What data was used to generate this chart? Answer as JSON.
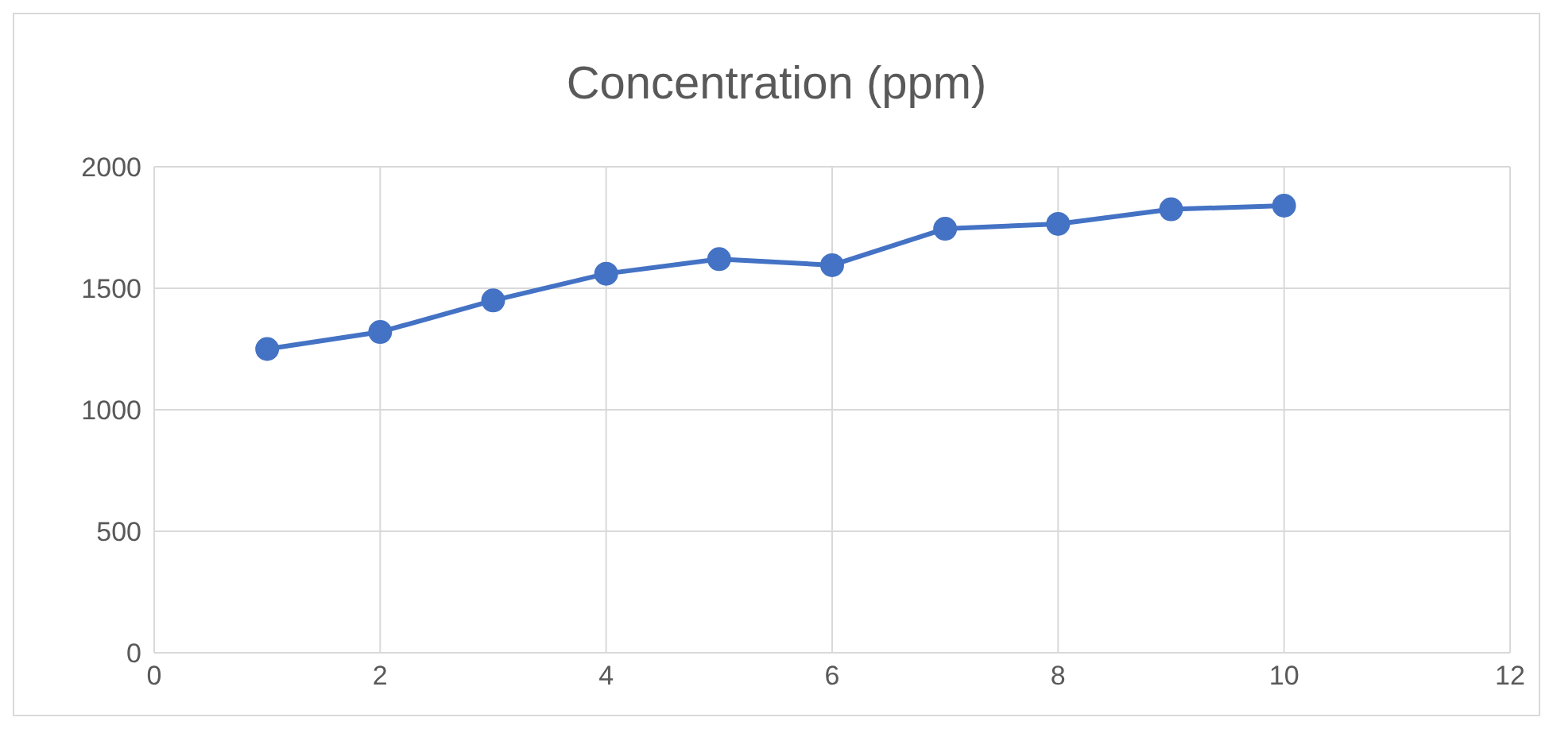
{
  "chart_data": {
    "type": "line",
    "title": "Concentration (ppm)",
    "x": [
      1,
      2,
      3,
      4,
      5,
      6,
      7,
      8,
      9,
      10
    ],
    "series": [
      {
        "color": "#4472c4",
        "values": [
          1250,
          1320,
          1450,
          1560,
          1620,
          1595,
          1745,
          1765,
          1825,
          1840
        ]
      }
    ],
    "xlim": [
      0,
      12
    ],
    "xticks": [
      0,
      2,
      4,
      6,
      8,
      10,
      12
    ],
    "ylim": [
      0,
      2000
    ],
    "yticks": [
      0,
      500,
      1000,
      1500,
      2000
    ],
    "grid": true,
    "marker": "circle",
    "line_style": "solid",
    "legend": false
  }
}
